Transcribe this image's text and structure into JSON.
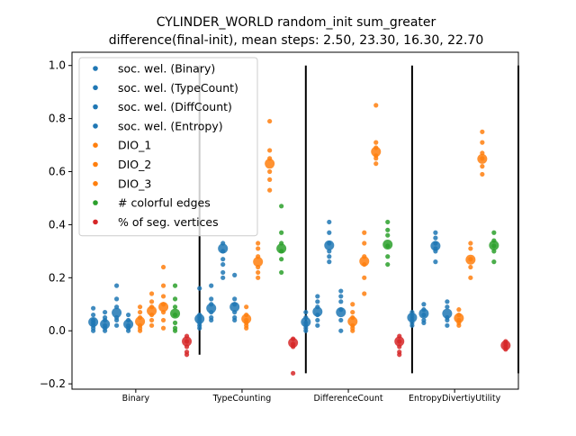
{
  "chart_data": {
    "type": "scatter",
    "title_line1": "CYLINDER_WORLD random_init sum_greater",
    "title_line2": "difference(final-init), mean steps: 2.50, 23.30, 16.30, 22.70",
    "xlabel": "",
    "ylabel": "",
    "ylim": [
      -0.22,
      1.05
    ],
    "y_ticks": [
      "1.0",
      "0.8",
      "0.6",
      "0.4",
      "0.2",
      "0.0",
      "−0.2"
    ],
    "y_tick_values": [
      1.0,
      0.8,
      0.6,
      0.4,
      0.2,
      0.0,
      -0.2
    ],
    "categories": [
      "Binary",
      "TypeCounting",
      "DifferenceCount",
      "EntropyDivertiyUtility"
    ],
    "separator_lines": {
      "y_top": 1.0,
      "y_bottom": [
        -0.09,
        -0.16,
        -0.16,
        -0.16
      ]
    },
    "legend_position": "upper-left",
    "colors": {
      "blue": "#1f77b4",
      "orange": "#ff7f0e",
      "green": "#2ca02c",
      "red": "#d62728"
    },
    "series": [
      {
        "name": "soc. wel. (Binary)",
        "color": "#1f77b4",
        "offset": -0.4,
        "means": [
          0.033,
          0.045,
          0.033,
          0.05
        ],
        "points": [
          [
            0.0,
            0.02,
            0.04,
            0.06,
            0.085,
            0.01,
            0.03
          ],
          [
            0.02,
            0.04,
            0.06,
            0.03,
            0.01,
            0.05,
            0.16
          ],
          [
            0.0,
            0.02,
            0.05,
            0.03,
            0.07,
            0.01
          ],
          [
            0.03,
            0.05,
            0.07,
            0.04,
            0.02,
            0.06
          ]
        ]
      },
      {
        "name": "soc. wel. (TypeCount)",
        "color": "#1f77b4",
        "offset": -0.29,
        "means": [
          0.025,
          0.085,
          0.072,
          0.065
        ],
        "points": [
          [
            0.0,
            0.02,
            0.05,
            0.07,
            0.01,
            0.04
          ],
          [
            0.05,
            0.07,
            0.1,
            0.12,
            0.17,
            0.04
          ],
          [
            0.04,
            0.06,
            0.09,
            0.11,
            0.13,
            0.02
          ],
          [
            0.03,
            0.06,
            0.08,
            0.1,
            0.04
          ]
        ]
      },
      {
        "name": "soc. wel. (DiffCount)",
        "color": "#1f77b4",
        "offset": -0.18,
        "means": [
          0.068,
          0.31,
          0.322,
          0.32
        ],
        "points": [
          [
            0.02,
            0.05,
            0.09,
            0.12,
            0.17,
            0.04
          ],
          [
            0.22,
            0.27,
            0.3,
            0.33,
            0.2,
            0.25
          ],
          [
            0.26,
            0.3,
            0.33,
            0.37,
            0.41,
            0.28
          ],
          [
            0.26,
            0.3,
            0.33,
            0.35,
            0.37,
            0.31
          ]
        ]
      },
      {
        "name": "soc. wel. (Entropy)",
        "color": "#1f77b4",
        "offset": -0.07,
        "means": [
          0.025,
          0.09,
          0.07,
          0.065
        ],
        "points": [
          [
            0.0,
            0.02,
            0.04,
            0.06,
            0.01
          ],
          [
            0.05,
            0.07,
            0.1,
            0.12,
            0.21,
            0.04
          ],
          [
            0.0,
            0.04,
            0.08,
            0.11,
            0.13,
            0.15
          ],
          [
            0.02,
            0.05,
            0.09,
            0.11,
            0.04
          ]
        ]
      },
      {
        "name": "DIO_1",
        "color": "#ff7f0e",
        "offset": 0.04,
        "means": [
          0.035,
          0.045,
          0.035,
          0.048
        ],
        "points": [
          [
            0.0,
            0.02,
            0.05,
            0.07,
            0.09,
            0.01
          ],
          [
            0.02,
            0.04,
            0.06,
            0.09,
            0.01,
            0.03
          ],
          [
            0.0,
            0.02,
            0.05,
            0.07,
            0.1,
            0.01
          ],
          [
            0.02,
            0.04,
            0.06,
            0.08,
            0.03
          ]
        ]
      },
      {
        "name": "DIO_2",
        "color": "#ff7f0e",
        "offset": 0.15,
        "means": [
          0.075,
          0.26,
          0.262,
          0.268
        ],
        "points": [
          [
            0.04,
            0.06,
            0.09,
            0.11,
            0.14,
            0.02
          ],
          [
            0.2,
            0.24,
            0.28,
            0.31,
            0.33,
            0.22
          ],
          [
            0.14,
            0.2,
            0.25,
            0.28,
            0.33,
            0.37
          ],
          [
            0.2,
            0.24,
            0.27,
            0.31,
            0.33
          ]
        ]
      },
      {
        "name": "DIO_3",
        "color": "#ff7f0e",
        "offset": 0.26,
        "means": [
          0.09,
          0.63,
          0.675,
          0.648
        ],
        "points": [
          [
            0.04,
            0.07,
            0.1,
            0.13,
            0.17,
            0.24,
            0.01
          ],
          [
            0.53,
            0.57,
            0.6,
            0.65,
            0.68,
            0.79
          ],
          [
            0.63,
            0.66,
            0.69,
            0.71,
            0.85,
            0.65
          ],
          [
            0.59,
            0.62,
            0.65,
            0.67,
            0.71,
            0.75
          ]
        ]
      },
      {
        "name": "# colorful edges",
        "color": "#2ca02c",
        "offset": 0.37,
        "means": [
          0.065,
          0.31,
          0.325,
          0.322
        ],
        "points": [
          [
            0.0,
            0.03,
            0.06,
            0.09,
            0.12,
            0.17,
            0.01
          ],
          [
            0.22,
            0.27,
            0.3,
            0.33,
            0.37,
            0.47
          ],
          [
            0.25,
            0.28,
            0.32,
            0.36,
            0.38,
            0.41
          ],
          [
            0.26,
            0.3,
            0.32,
            0.34,
            0.37
          ]
        ]
      },
      {
        "name": "% of seg. vertices",
        "color": "#d62728",
        "offset": 0.48,
        "means": [
          -0.04,
          -0.045,
          -0.04,
          -0.055
        ],
        "points": [
          [
            -0.02,
            -0.04,
            -0.06,
            -0.08,
            -0.09
          ],
          [
            -0.03,
            -0.05,
            -0.06,
            -0.16
          ],
          [
            -0.02,
            -0.04,
            -0.06,
            -0.08,
            -0.09
          ],
          [
            -0.04,
            -0.05,
            -0.07,
            -0.06
          ]
        ]
      }
    ]
  }
}
